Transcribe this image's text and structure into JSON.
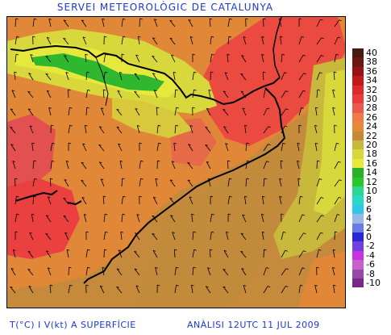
{
  "header": {
    "title": "SERVEI METEOROLÒGIC DE CATALUNYA"
  },
  "footer": {
    "variable": "T(°C) I V(kt) A SUPERFÍCIE",
    "analysis": "ANÀLISI 12UTC 11 JUL 2009"
  },
  "legend": {
    "items": [
      {
        "label": "40",
        "color": "#4a1a12"
      },
      {
        "label": "38",
        "color": "#6e1712"
      },
      {
        "label": "36",
        "color": "#981414"
      },
      {
        "label": "34",
        "color": "#c01a1a"
      },
      {
        "label": "32",
        "color": "#e02a2a"
      },
      {
        "label": "30",
        "color": "#ea3b3b"
      },
      {
        "label": "28",
        "color": "#ec5a4e"
      },
      {
        "label": "26",
        "color": "#ee7a45"
      },
      {
        "label": "24",
        "color": "#e48a3a"
      },
      {
        "label": "22",
        "color": "#c48a3a"
      },
      {
        "label": "20",
        "color": "#c8b83c"
      },
      {
        "label": "18",
        "color": "#d8d83c"
      },
      {
        "label": "16",
        "color": "#e6e83c"
      },
      {
        "label": "14",
        "color": "#28b028"
      },
      {
        "label": "12",
        "color": "#28c828"
      },
      {
        "label": "10",
        "color": "#28d890"
      },
      {
        "label": "8",
        "color": "#28d8c8"
      },
      {
        "label": "6",
        "color": "#30c8e8"
      },
      {
        "label": "4",
        "color": "#9ab8e6"
      },
      {
        "label": "2",
        "color": "#6a7ae6"
      },
      {
        "label": "0",
        "color": "#2828d8"
      },
      {
        "label": "-2",
        "color": "#7040e0"
      },
      {
        "label": "-4",
        "color": "#c832e0"
      },
      {
        "label": "-6",
        "color": "#c860c8"
      },
      {
        "label": "-8",
        "color": "#9848a8"
      },
      {
        "label": "-10",
        "color": "#782888"
      }
    ]
  }
}
